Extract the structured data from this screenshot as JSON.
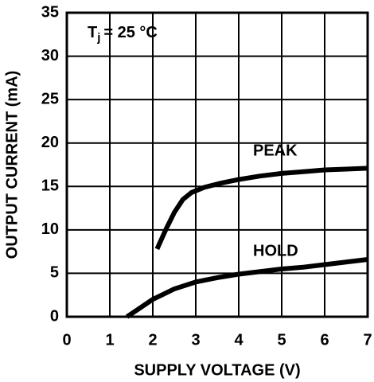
{
  "chart_data": {
    "type": "line",
    "annotation": [
      "T",
      "j",
      "= 25 °C"
    ],
    "xlabel": "SUPPLY VOLTAGE (V)",
    "ylabel": "OUTPUT CURRENT (mA)",
    "xlim": [
      0,
      7
    ],
    "xticks": [
      0,
      1,
      2,
      3,
      4,
      5,
      6,
      7
    ],
    "ylim": [
      0,
      35
    ],
    "yticks": [
      0,
      5,
      10,
      15,
      20,
      25,
      30,
      35
    ],
    "grid": true,
    "series": [
      {
        "name": "PEAK",
        "color": "#000000",
        "x": [
          2.1,
          2.3,
          2.5,
          2.7,
          2.9,
          3.2,
          3.6,
          4,
          4.5,
          5,
          5.5,
          6,
          6.5,
          7
        ],
        "values": [
          7.8,
          10,
          12,
          13.5,
          14.3,
          14.9,
          15.4,
          15.8,
          16.2,
          16.5,
          16.7,
          16.9,
          17,
          17.1
        ]
      },
      {
        "name": "HOLD",
        "color": "#000000",
        "x": [
          1.4,
          1.7,
          2,
          2.5,
          3,
          3.5,
          4,
          4.5,
          5,
          5.5,
          6,
          6.5,
          7
        ],
        "values": [
          0,
          1,
          2,
          3.2,
          4,
          4.5,
          4.9,
          5.2,
          5.5,
          5.7,
          6,
          6.3,
          6.6
        ]
      }
    ]
  }
}
